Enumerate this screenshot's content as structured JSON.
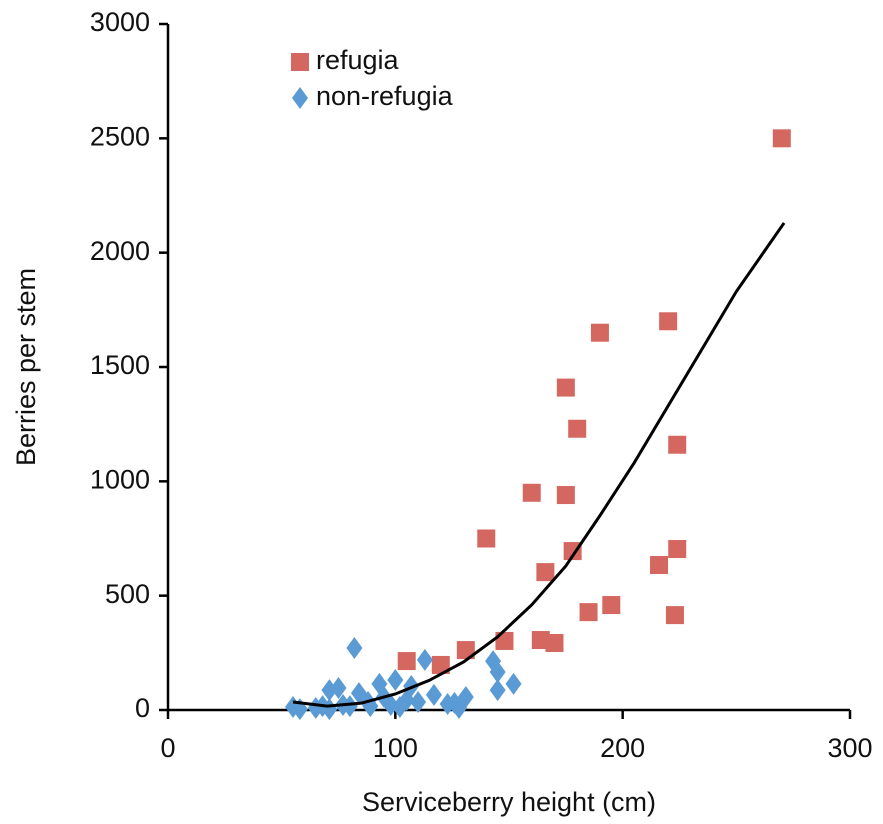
{
  "chart_data": {
    "type": "scatter",
    "xlabel": "Serviceberry height (cm)",
    "ylabel": "Berries per stem",
    "xlim": [
      0,
      300
    ],
    "xticks": [
      0,
      100,
      200,
      300
    ],
    "ylim": [
      0,
      3000
    ],
    "yticks": [
      0,
      500,
      1000,
      1500,
      2000,
      2500,
      3000
    ],
    "grid": false,
    "legend": "upper left",
    "series": [
      {
        "name": "refugia",
        "color": "#d4675f",
        "marker": "square",
        "x": [
          270,
          220,
          190,
          175,
          180,
          224,
          160,
          175,
          140,
          178,
          224,
          216,
          166,
          195,
          185,
          223,
          164,
          170,
          148,
          131,
          120,
          105
        ],
        "values": [
          2500,
          1700,
          1650,
          1410,
          1230,
          1160,
          950,
          940,
          750,
          695,
          704,
          634,
          603,
          459,
          428,
          415,
          306,
          293,
          302,
          262,
          197,
          214
        ]
      },
      {
        "name": "non-refugia",
        "color": "#5b9bd5",
        "marker": "diamond",
        "x": [
          82,
          113,
          143,
          145,
          145,
          152,
          93,
          100,
          107,
          71,
          75,
          84,
          55,
          58,
          65,
          71,
          80,
          89,
          98,
          102,
          110,
          117,
          123,
          128,
          131,
          105,
          95,
          88,
          77,
          68,
          126
        ],
        "values": [
          271,
          219,
          214,
          166,
          87,
          114,
          114,
          131,
          105,
          87,
          96,
          74,
          13,
          4,
          9,
          4,
          17,
          17,
          22,
          13,
          35,
          66,
          26,
          9,
          57,
          44,
          57,
          35,
          22,
          17,
          31
        ]
      }
    ],
    "fit": {
      "color": "#000000",
      "x": [
        55,
        70,
        85,
        100,
        115,
        130,
        145,
        160,
        175,
        190,
        205,
        220,
        235,
        250,
        271
      ],
      "values": [
        35,
        17,
        30,
        70,
        130,
        210,
        320,
        460,
        630,
        850,
        1080,
        1330,
        1580,
        1830,
        2130
      ]
    }
  }
}
